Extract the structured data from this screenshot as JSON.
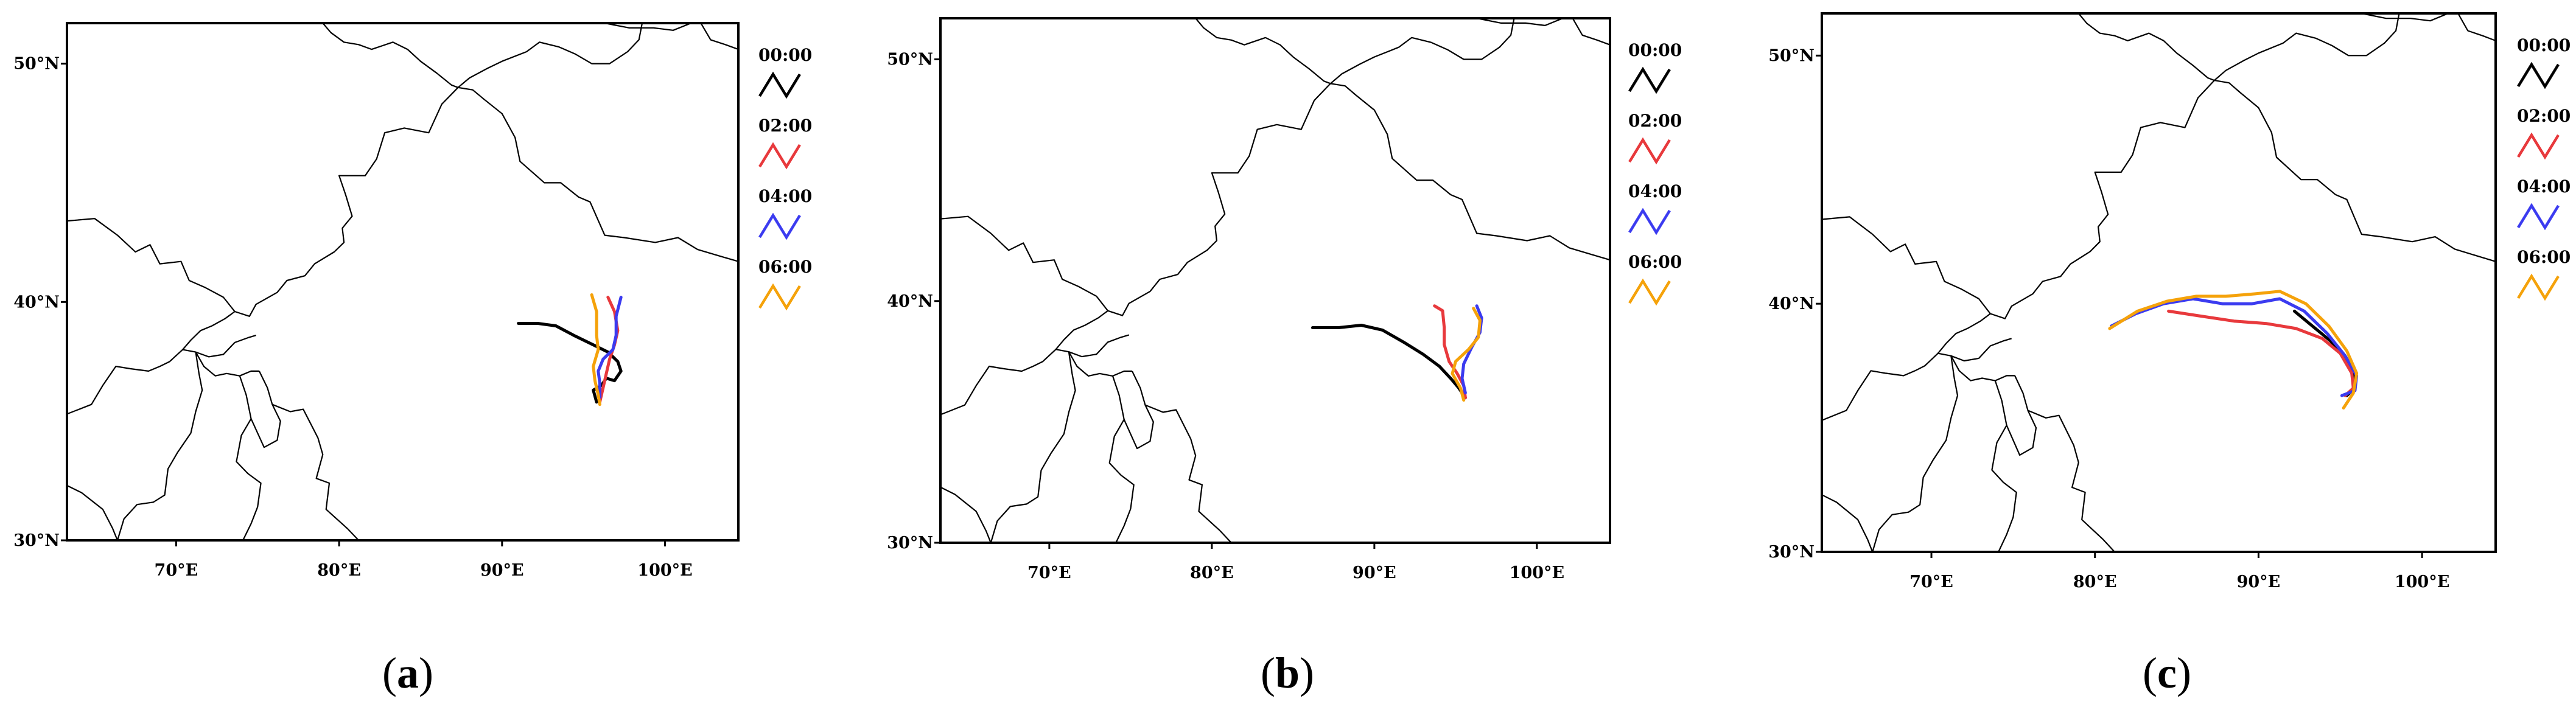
{
  "panels": [
    {
      "caption_letter": "a",
      "lon_ticks": [
        "70°E",
        "80°E",
        "90°E",
        "100°E"
      ],
      "lat_ticks": [
        "30°N",
        "40°N",
        "50°N"
      ],
      "legend": [
        {
          "time": "00:00",
          "color": "#000000"
        },
        {
          "time": "02:00",
          "color": "#e8393c"
        },
        {
          "time": "04:00",
          "color": "#3b3bf0"
        },
        {
          "time": "06:00",
          "color": "#f5a20a"
        }
      ],
      "trajectories": [
        {
          "time": "00:00",
          "color": "#000000",
          "points": [
            [
              91.0,
              39.1
            ],
            [
              92.2,
              39.1
            ],
            [
              93.3,
              39.0
            ],
            [
              94.4,
              38.6
            ],
            [
              95.6,
              38.2
            ],
            [
              96.5,
              37.9
            ],
            [
              97.1,
              37.5
            ],
            [
              97.3,
              37.1
            ],
            [
              96.9,
              36.7
            ],
            [
              96.4,
              36.8
            ],
            [
              96.1,
              36.5
            ],
            [
              95.6,
              36.3
            ],
            [
              95.8,
              35.8
            ]
          ]
        },
        {
          "time": "02:00",
          "color": "#e8393c",
          "points": [
            [
              96.5,
              40.2
            ],
            [
              96.9,
              39.6
            ],
            [
              97.1,
              38.8
            ],
            [
              96.9,
              38.2
            ],
            [
              96.6,
              37.6
            ],
            [
              96.4,
              37.0
            ],
            [
              96.2,
              36.4
            ],
            [
              96.0,
              35.8
            ]
          ]
        },
        {
          "time": "04:00",
          "color": "#3b3bf0",
          "points": [
            [
              97.3,
              40.2
            ],
            [
              97.0,
              39.4
            ],
            [
              97.0,
              38.6
            ],
            [
              96.8,
              38.0
            ],
            [
              96.2,
              37.6
            ],
            [
              95.9,
              37.1
            ],
            [
              96.0,
              36.6
            ],
            [
              96.0,
              36.0
            ]
          ]
        },
        {
          "time": "06:00",
          "color": "#f5a20a",
          "points": [
            [
              95.5,
              40.3
            ],
            [
              95.8,
              39.6
            ],
            [
              95.8,
              38.6
            ],
            [
              95.9,
              38.0
            ],
            [
              95.6,
              37.3
            ],
            [
              95.7,
              36.7
            ],
            [
              95.9,
              36.1
            ],
            [
              96.0,
              35.7
            ]
          ]
        }
      ]
    },
    {
      "caption_letter": "b",
      "lon_ticks": [
        "70°E",
        "80°E",
        "90°E",
        "100°E"
      ],
      "lat_ticks": [
        "30°N",
        "40°N",
        "50°N"
      ],
      "legend": [
        {
          "time": "00:00",
          "color": "#000000"
        },
        {
          "time": "02:00",
          "color": "#e8393c"
        },
        {
          "time": "04:00",
          "color": "#3b3bf0"
        },
        {
          "time": "06:00",
          "color": "#f5a20a"
        }
      ],
      "trajectories": [
        {
          "time": "00:00",
          "color": "#000000",
          "points": [
            [
              86.2,
              38.9
            ],
            [
              87.8,
              38.9
            ],
            [
              89.2,
              39.0
            ],
            [
              90.5,
              38.8
            ],
            [
              91.8,
              38.3
            ],
            [
              93.0,
              37.8
            ],
            [
              94.0,
              37.3
            ],
            [
              94.7,
              36.8
            ],
            [
              95.2,
              36.4
            ],
            [
              95.6,
              36.0
            ]
          ]
        },
        {
          "time": "02:00",
          "color": "#e8393c",
          "points": [
            [
              93.7,
              39.8
            ],
            [
              94.2,
              39.6
            ],
            [
              94.3,
              38.9
            ],
            [
              94.3,
              38.2
            ],
            [
              94.6,
              37.5
            ],
            [
              95.1,
              37.0
            ],
            [
              95.5,
              36.5
            ],
            [
              95.6,
              36.0
            ]
          ]
        },
        {
          "time": "04:00",
          "color": "#3b3bf0",
          "points": [
            [
              96.3,
              39.8
            ],
            [
              96.6,
              39.3
            ],
            [
              96.5,
              38.7
            ],
            [
              96.0,
              38.1
            ],
            [
              95.5,
              37.4
            ],
            [
              95.4,
              36.8
            ],
            [
              95.6,
              36.2
            ]
          ]
        },
        {
          "time": "06:00",
          "color": "#f5a20a",
          "points": [
            [
              96.1,
              39.7
            ],
            [
              96.5,
              39.2
            ],
            [
              96.4,
              38.5
            ],
            [
              95.8,
              38.0
            ],
            [
              95.0,
              37.5
            ],
            [
              94.8,
              37.0
            ],
            [
              95.3,
              36.4
            ],
            [
              95.5,
              35.9
            ]
          ]
        }
      ]
    },
    {
      "caption_letter": "c",
      "lon_ticks": [
        "70°E",
        "80°E",
        "90°E",
        "100°E"
      ],
      "lat_ticks": [
        "30°N",
        "40°N",
        "50°N"
      ],
      "legend": [
        {
          "time": "00:00",
          "color": "#000000"
        },
        {
          "time": "02:00",
          "color": "#e8393c"
        },
        {
          "time": "04:00",
          "color": "#3b3bf0"
        },
        {
          "time": "06:00",
          "color": "#f5a20a"
        }
      ],
      "trajectories": [
        {
          "time": "00:00",
          "color": "#000000",
          "points": [
            [
              92.2,
              39.7
            ],
            [
              93.3,
              39.1
            ],
            [
              94.4,
              38.5
            ],
            [
              95.3,
              37.8
            ],
            [
              95.8,
              37.2
            ],
            [
              95.9,
              36.6
            ],
            [
              95.4,
              36.3
            ]
          ]
        },
        {
          "time": "02:00",
          "color": "#e8393c",
          "points": [
            [
              84.5,
              39.7
            ],
            [
              86.5,
              39.5
            ],
            [
              88.5,
              39.3
            ],
            [
              90.5,
              39.2
            ],
            [
              92.3,
              39.0
            ],
            [
              93.9,
              38.6
            ],
            [
              95.0,
              38.0
            ],
            [
              95.7,
              37.2
            ],
            [
              95.8,
              36.6
            ],
            [
              95.3,
              36.3
            ]
          ]
        },
        {
          "time": "04:00",
          "color": "#3b3bf0",
          "points": [
            [
              81.0,
              39.1
            ],
            [
              82.5,
              39.6
            ],
            [
              84.2,
              40.0
            ],
            [
              86.0,
              40.2
            ],
            [
              87.8,
              40.0
            ],
            [
              89.6,
              40.0
            ],
            [
              91.3,
              40.2
            ],
            [
              92.8,
              39.7
            ],
            [
              94.2,
              38.8
            ],
            [
              95.3,
              37.9
            ],
            [
              96.0,
              37.1
            ],
            [
              95.9,
              36.5
            ],
            [
              95.1,
              36.3
            ]
          ]
        },
        {
          "time": "06:00",
          "color": "#f5a20a",
          "points": [
            [
              80.9,
              39.0
            ],
            [
              82.6,
              39.7
            ],
            [
              84.4,
              40.1
            ],
            [
              86.2,
              40.3
            ],
            [
              88.0,
              40.3
            ],
            [
              89.8,
              40.4
            ],
            [
              91.3,
              40.5
            ],
            [
              92.9,
              40.0
            ],
            [
              94.3,
              39.1
            ],
            [
              95.4,
              38.1
            ],
            [
              96.0,
              37.2
            ],
            [
              95.8,
              36.4
            ],
            [
              95.2,
              35.8
            ]
          ]
        }
      ]
    }
  ]
}
